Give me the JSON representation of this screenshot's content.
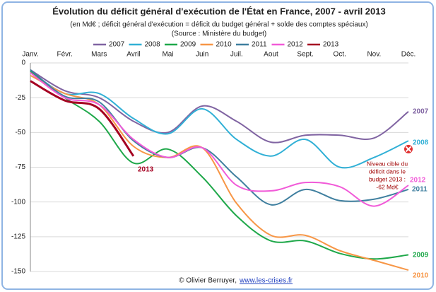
{
  "chart_data": {
    "type": "line",
    "title": "Évolution du déficit général d'exécution de l'État en France, 2007 - avril 2013",
    "subtitle": [
      "(en Md€ ; déficit général d'exécution = déficit du budget général + solde des comptes spéciaux)",
      "(Source : Ministère du budget)"
    ],
    "categories": [
      "Janv.",
      "Févr.",
      "Mars",
      "Avril",
      "Mai",
      "Juin",
      "Juil.",
      "Aout",
      "Sept.",
      "Oct.",
      "Nov.",
      "Déc."
    ],
    "series": [
      {
        "name": "2007",
        "color": "#8064a2",
        "values": [
          -5,
          -20,
          -25,
          -42,
          -50,
          -31,
          -42,
          -57,
          -52,
          -52,
          -54,
          -35
        ]
      },
      {
        "name": "2008",
        "color": "#31b0d6",
        "values": [
          -6,
          -22,
          -22,
          -40,
          -51,
          -33,
          -55,
          -67,
          -55,
          -75,
          -68,
          -56
        ]
      },
      {
        "name": "2009",
        "color": "#1fa84a",
        "values": [
          -6,
          -25,
          -42,
          -72,
          -62,
          -82,
          -110,
          -128,
          -128,
          -137,
          -141,
          -138
        ]
      },
      {
        "name": "2010",
        "color": "#f79646",
        "values": [
          -9,
          -22,
          -30,
          -60,
          -68,
          -61,
          -101,
          -124,
          -124,
          -135,
          -142,
          -149
        ]
      },
      {
        "name": "2011",
        "color": "#3f7f9f",
        "values": [
          -5,
          -24,
          -28,
          -56,
          -68,
          -61,
          -82,
          -102,
          -91,
          -99,
          -98,
          -91
        ]
      },
      {
        "name": "2012",
        "color": "#f15bd8",
        "values": [
          -7,
          -25,
          -30,
          -55,
          -68,
          -61,
          -88,
          -92,
          -86,
          -89,
          -103,
          -88
        ]
      },
      {
        "name": "2013",
        "color": "#a50021",
        "values": [
          -13,
          -27,
          -33,
          -67,
          null,
          null,
          null,
          null,
          null,
          null,
          null,
          null
        ]
      }
    ],
    "ylim": [
      0,
      -150
    ],
    "yticks": [
      0,
      -25,
      -50,
      -75,
      -100,
      -125,
      -150
    ],
    "grid": true,
    "target": {
      "value": -62,
      "color": "#e03030",
      "label": [
        "Niveau cible du",
        "déficit dans le",
        "budget 2013 :",
        "-62 Md€"
      ]
    },
    "footer": "© Olivier Berruyer,",
    "footer_link": "www.les-crises.fr"
  }
}
